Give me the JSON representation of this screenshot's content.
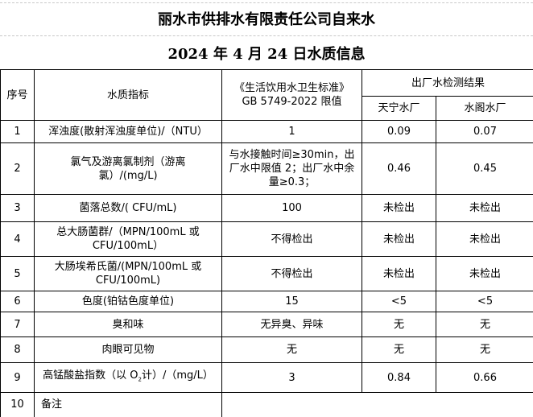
{
  "title": "丽水市供排水有限责任公司自来水",
  "subtitle": "2024 年 4 月 24 日水质信息",
  "headers": {
    "no": "序号",
    "indicator": "水质指标",
    "standard_line1": "《生活饮用水卫生标准》",
    "standard_line2": "GB 5749-2022 限值",
    "results": "出厂水检测结果",
    "plant1": "天宁水厂",
    "plant2": "水阁水厂"
  },
  "rows": [
    {
      "no": "1",
      "indicator": "浑浊度(散射浑浊度单位)/（NTU）",
      "limit": "1",
      "plant1": "0.09",
      "plant2": "0.07"
    },
    {
      "no": "2",
      "indicator": "氯气及游离氯制剂（游离氯）/(mg/L)",
      "limit": "与水接触时间≥30min，出厂水中限值 2；出厂水中余量≥0.3；",
      "plant1": "0.46",
      "plant2": "0.45"
    },
    {
      "no": "3",
      "indicator": "菌落总数/( CFU/mL)",
      "limit": "100",
      "plant1": "未检出",
      "plant2": "未检出"
    },
    {
      "no": "4",
      "indicator": "总大肠菌群/（MPN/100mL 或 CFU/100mL）",
      "limit": "不得检出",
      "plant1": "未检出",
      "plant2": "未检出"
    },
    {
      "no": "5",
      "indicator": "大肠埃希氏菌/(MPN/100mL 或 CFU/100mL)",
      "limit": "不得检出",
      "plant1": "未检出",
      "plant2": "未检出"
    },
    {
      "no": "6",
      "indicator": "色度(铂钴色度单位)",
      "limit": "15",
      "plant1": "<5",
      "plant2": "<5"
    },
    {
      "no": "7",
      "indicator": "臭和味",
      "limit": "无异臭、异味",
      "plant1": "无",
      "plant2": "无"
    },
    {
      "no": "8",
      "indicator": "肉眼可见物",
      "limit": "无",
      "plant1": "无",
      "plant2": "无"
    },
    {
      "no": "9",
      "indicator_pre": "高锰酸盐指数（以 O",
      "indicator_sub": "2",
      "indicator_post": "计）/（mg/L）",
      "limit": "3",
      "plant1": "0.84",
      "plant2": "0.66"
    }
  ],
  "notes": {
    "no": "10",
    "label": "备注",
    "value": ""
  }
}
